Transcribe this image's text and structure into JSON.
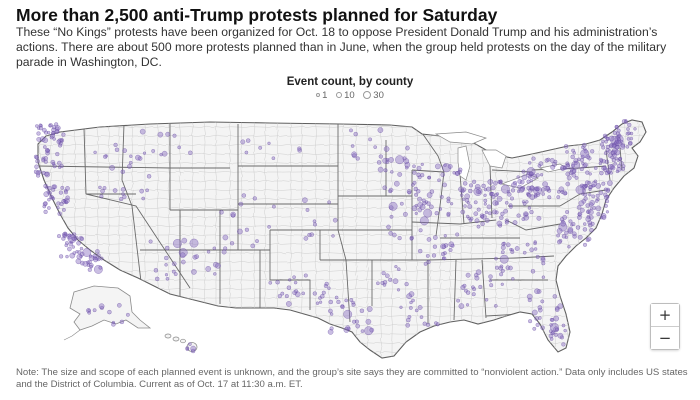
{
  "headline": "More than 2,500 anti-Trump protests planned for Saturday",
  "dek": "These “No Kings” protests have been organized for Oct. 18 to oppose President Donald Trump and his administration’s actions. There are about 500 more protests planned than in June, when the group held protests on the day of the military parade in Washington, DC.",
  "legend": {
    "title": "Event count, by county",
    "items": [
      {
        "label": "1",
        "value": 1
      },
      {
        "label": "10",
        "value": 10
      },
      {
        "label": "30",
        "value": 30
      }
    ]
  },
  "map": {
    "region": "Contiguous United States, Alaska and Hawaii",
    "dot_color": "#8a6fc0",
    "dot_stroke": "#5b3f99",
    "state_border_color": "#5f5f5f",
    "county_border_color": "#c9c9c9",
    "land_color": "#f4f4f4"
  },
  "zoom": {
    "in_label": "+",
    "out_label": "−"
  },
  "note": "Note: The size and scope of each planned event is unknown, and the group’s site says they are committed to “nonviolent action.” Data only includes US states and the District of Columbia. Current as of Oct. 17 at 11:30 a.m. ET."
}
